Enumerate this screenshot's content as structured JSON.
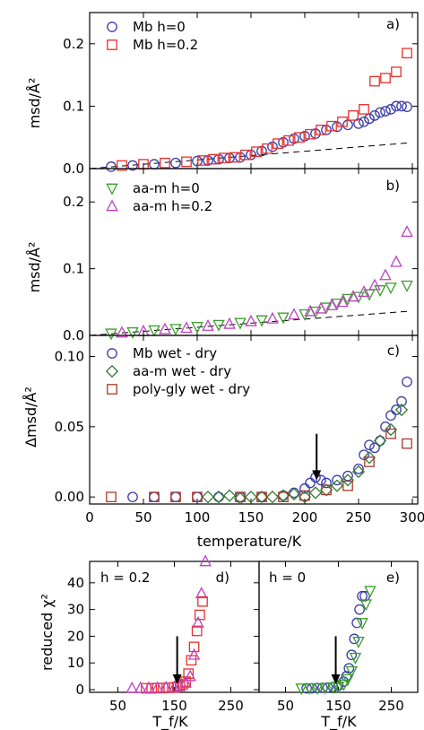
{
  "colors": {
    "blue": "#3a3aa8",
    "red": "#e8302a",
    "green": "#3aa02a",
    "magenta": "#c040c0",
    "darkred": "#a83a2a",
    "dkgreen": "#2e7d32"
  },
  "chart_data": [
    {
      "type": "scatter",
      "panel_label": "a)",
      "ylabel": "msd/Å²",
      "xlim": [
        0,
        305
      ],
      "ylim": [
        0,
        0.25
      ],
      "yticks": [
        "0.0",
        "0.1",
        "0.2"
      ],
      "series": [
        {
          "name": "Mb h=0",
          "marker": "circle",
          "color": "#3a3aa8",
          "x": [
            20,
            40,
            60,
            80,
            100,
            110,
            120,
            130,
            140,
            150,
            160,
            170,
            180,
            190,
            200,
            210,
            220,
            230,
            240,
            250,
            255,
            260,
            265,
            270,
            275,
            280,
            285,
            290,
            295
          ],
          "y": [
            0.003,
            0.005,
            0.007,
            0.009,
            0.012,
            0.013,
            0.015,
            0.017,
            0.018,
            0.022,
            0.028,
            0.035,
            0.042,
            0.048,
            0.052,
            0.056,
            0.062,
            0.067,
            0.07,
            0.072,
            0.075,
            0.08,
            0.085,
            0.09,
            0.092,
            0.095,
            0.1,
            0.1,
            0.099
          ]
        },
        {
          "name": "Mb h=0.2",
          "marker": "square",
          "color": "#e8302a",
          "x": [
            30,
            50,
            70,
            90,
            105,
            115,
            125,
            135,
            145,
            155,
            165,
            175,
            185,
            195,
            205,
            215,
            225,
            235,
            245,
            255,
            265,
            275,
            285,
            295
          ],
          "y": [
            0.005,
            0.007,
            0.009,
            0.011,
            0.013,
            0.015,
            0.017,
            0.018,
            0.022,
            0.027,
            0.032,
            0.04,
            0.045,
            0.05,
            0.055,
            0.062,
            0.068,
            0.075,
            0.085,
            0.095,
            0.14,
            0.145,
            0.155,
            0.185
          ]
        }
      ],
      "reference_line": {
        "style": "dashed",
        "x": [
          0,
          295
        ],
        "y": [
          0,
          0.041
        ]
      }
    },
    {
      "type": "scatter",
      "panel_label": "b)",
      "ylabel": "msd/Å²",
      "xlim": [
        0,
        305
      ],
      "ylim": [
        0,
        0.25
      ],
      "yticks": [
        "0.0",
        "0.1",
        "0.2"
      ],
      "series": [
        {
          "name": "aa-m h=0",
          "marker": "triangle-down",
          "color": "#3aa02a",
          "x": [
            20,
            40,
            60,
            80,
            100,
            120,
            140,
            160,
            180,
            200,
            210,
            220,
            230,
            240,
            250,
            260,
            270,
            280,
            295
          ],
          "y": [
            0.003,
            0.005,
            0.008,
            0.01,
            0.013,
            0.016,
            0.019,
            0.023,
            0.027,
            0.032,
            0.036,
            0.042,
            0.048,
            0.055,
            0.058,
            0.062,
            0.068,
            0.072,
            0.075
          ]
        },
        {
          "name": "aa-m h=0.2",
          "marker": "triangle-up",
          "color": "#c040c0",
          "x": [
            30,
            50,
            70,
            90,
            110,
            130,
            150,
            170,
            190,
            205,
            215,
            225,
            235,
            245,
            255,
            265,
            275,
            285,
            295
          ],
          "y": [
            0.004,
            0.006,
            0.009,
            0.011,
            0.014,
            0.017,
            0.021,
            0.025,
            0.031,
            0.036,
            0.04,
            0.045,
            0.05,
            0.058,
            0.065,
            0.075,
            0.09,
            0.11,
            0.155
          ]
        }
      ],
      "reference_line": {
        "style": "dashed",
        "x": [
          0,
          295
        ],
        "y": [
          0,
          0.036
        ]
      }
    },
    {
      "type": "scatter",
      "panel_label": "c)",
      "ylabel": "Δmsd/Å²",
      "xlabel": "temperature/K",
      "xlim": [
        0,
        305
      ],
      "ylim": [
        -0.005,
        0.115
      ],
      "yticks": [
        "0.00",
        "0.05",
        "0.10"
      ],
      "xticks": [
        "0",
        "50",
        "100",
        "150",
        "200",
        "250",
        "300"
      ],
      "series": [
        {
          "name": "Mb wet - dry",
          "marker": "circle",
          "color": "#3a3aa8",
          "x": [
            40,
            60,
            80,
            100,
            120,
            140,
            160,
            180,
            190,
            200,
            205,
            210,
            215,
            220,
            230,
            240,
            250,
            255,
            260,
            265,
            270,
            275,
            280,
            285,
            290,
            295
          ],
          "y": [
            0.0,
            0.0,
            0.0,
            0.0,
            0.0,
            0.0,
            0.0,
            0.001,
            0.003,
            0.006,
            0.01,
            0.014,
            0.012,
            0.01,
            0.012,
            0.015,
            0.02,
            0.03,
            0.037,
            0.035,
            0.04,
            0.05,
            0.058,
            0.062,
            0.068,
            0.082
          ]
        },
        {
          "name": "aa-m wet - dry",
          "marker": "diamond",
          "color": "#2e7d32",
          "x": [
            110,
            120,
            130,
            140,
            150,
            160,
            170,
            180,
            190,
            200,
            210,
            220,
            230,
            240,
            250,
            260,
            270,
            280,
            290
          ],
          "y": [
            0.0,
            0.0,
            0.001,
            -0.001,
            0.0,
            0.0,
            0.0,
            0.001,
            0.002,
            0.0,
            0.003,
            0.005,
            0.008,
            0.012,
            0.018,
            0.028,
            0.04,
            0.048,
            0.062
          ]
        },
        {
          "name": "poly-gly wet - dry",
          "marker": "square",
          "color": "#a83a2a",
          "x": [
            20,
            60,
            80,
            100,
            140,
            160,
            180,
            200,
            220,
            240,
            260,
            280,
            295
          ],
          "y": [
            0.0,
            0.0,
            0.0,
            0.0,
            0.0,
            0.0,
            0.0,
            0.001,
            0.005,
            0.008,
            0.025,
            0.045,
            0.038
          ]
        }
      ],
      "annotation": {
        "type": "arrow",
        "x": 211,
        "y_from": 0.045,
        "y_to": 0.012
      }
    },
    {
      "type": "scatter",
      "panel_label": "d)",
      "title": "h = 0.2",
      "ylabel": "reduced χ²",
      "xlabel": "T_f/K",
      "xlim": [
        0,
        300
      ],
      "ylim": [
        -1,
        48
      ],
      "yticks": [
        "0",
        "10",
        "20",
        "30",
        "40"
      ],
      "xticks": [
        "50",
        "150",
        "250"
      ],
      "series": [
        {
          "name": "squares",
          "marker": "square",
          "color": "#e8302a",
          "x": [
            100,
            110,
            120,
            130,
            140,
            150,
            155,
            160,
            165,
            170,
            175,
            180,
            185,
            190,
            195,
            200
          ],
          "y": [
            0.5,
            0.5,
            0.6,
            0.6,
            0.7,
            0.8,
            1.0,
            1.5,
            2.0,
            3.0,
            6.0,
            11.0,
            16.0,
            22.0,
            28.0,
            33.0
          ]
        },
        {
          "name": "triangles",
          "marker": "triangle-up",
          "color": "#c040c0",
          "x": [
            75,
            90,
            105,
            120,
            135,
            150,
            160,
            170,
            178,
            185,
            192,
            198,
            205
          ],
          "y": [
            0.5,
            0.6,
            0.6,
            0.7,
            0.8,
            0.9,
            1.2,
            2.5,
            5.0,
            13.0,
            25.0,
            36.0,
            48.0
          ]
        }
      ],
      "annotation": {
        "type": "arrow",
        "x": 155,
        "y_from": 20,
        "y_to": 2
      }
    },
    {
      "type": "scatter",
      "panel_label": "e)",
      "title": "h = 0",
      "xlabel": "T_f/K",
      "xlim": [
        0,
        300
      ],
      "ylim": [
        -1,
        48
      ],
      "yticks": [],
      "xticks": [
        "50",
        "150",
        "250"
      ],
      "series": [
        {
          "name": "circles",
          "marker": "circle",
          "color": "#3a3aa8",
          "x": [
            90,
            100,
            110,
            120,
            130,
            140,
            150,
            160,
            165,
            170,
            175,
            180,
            185,
            190,
            195,
            200
          ],
          "y": [
            0.5,
            0.5,
            0.6,
            0.7,
            0.8,
            1.0,
            1.5,
            3.0,
            5.0,
            8.0,
            13.0,
            19.0,
            25.0,
            30.0,
            35.0,
            35.0
          ]
        },
        {
          "name": "triangles",
          "marker": "triangle-down",
          "color": "#3aa02a",
          "x": [
            80,
            95,
            110,
            125,
            140,
            150,
            160,
            168,
            175,
            182,
            188,
            195,
            202,
            210
          ],
          "y": [
            0.5,
            0.6,
            0.6,
            0.7,
            0.9,
            1.2,
            2.0,
            4.0,
            7.0,
            12.0,
            18.0,
            25.0,
            32.0,
            37.0
          ]
        }
      ],
      "annotation": {
        "type": "arrow",
        "x": 145,
        "y_from": 20,
        "y_to": 2
      }
    }
  ]
}
